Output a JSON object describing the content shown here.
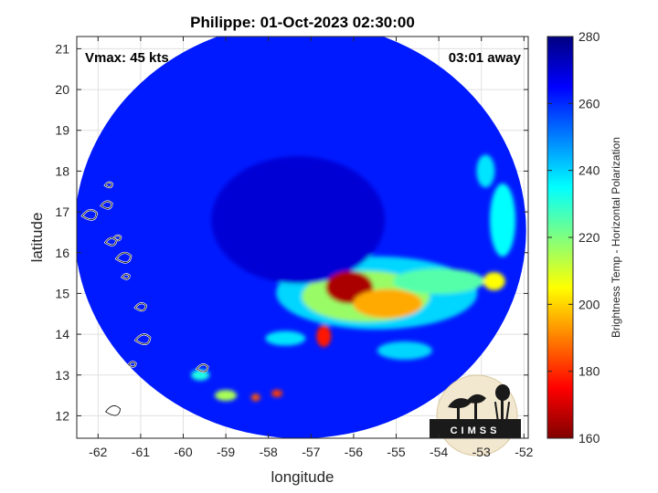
{
  "chart_data": {
    "type": "heatmap",
    "title": "Philippe: 01-Oct-2023 02:30:00",
    "xlabel": "longitude",
    "ylabel": "latitude",
    "xlim": [
      -62.5,
      -51.9
    ],
    "ylim": [
      11.45,
      21.3
    ],
    "xticks": [
      -62,
      -61,
      -60,
      -59,
      -58,
      -57,
      -56,
      -55,
      -54,
      -53,
      -52
    ],
    "yticks": [
      12,
      13,
      14,
      15,
      16,
      17,
      18,
      19,
      20,
      21
    ],
    "grid": true,
    "annotations": {
      "left": "Vmax: 45 kts",
      "right": "03:01 away"
    },
    "colorbar": {
      "label": "Brightness Temp - Horizontal Polarization",
      "range": [
        160,
        280
      ],
      "ticks": [
        160,
        180,
        200,
        220,
        240,
        260,
        280
      ],
      "colormap": "jet"
    },
    "scan_center": {
      "lon": -57.25,
      "lat": 16.55
    },
    "background_tb": 262,
    "features": [
      {
        "name": "storm-eye-region",
        "lon": -57.3,
        "lat": 16.8,
        "tb": 270
      },
      {
        "name": "deep-convection-core",
        "lon": -56.1,
        "lat": 15.15,
        "tb": 165
      },
      {
        "name": "convection-east",
        "lon": -55.2,
        "lat": 14.75,
        "tb": 195
      },
      {
        "name": "convection-spot-south",
        "lon": -56.7,
        "lat": 13.95,
        "tb": 178
      },
      {
        "name": "rainband-east-1",
        "lon": -54.0,
        "lat": 15.3,
        "tb": 225
      },
      {
        "name": "rainband-east-2",
        "lon": -52.7,
        "lat": 15.3,
        "tb": 205
      },
      {
        "name": "rainband-northeast",
        "lon": -52.5,
        "lat": 16.8,
        "tb": 235
      },
      {
        "name": "rainband-north-edge",
        "lon": -52.9,
        "lat": 18.0,
        "tb": 238
      },
      {
        "name": "cell-south-1",
        "lon": -58.3,
        "lat": 12.45,
        "tb": 185
      },
      {
        "name": "cell-south-2",
        "lon": -57.8,
        "lat": 12.55,
        "tb": 182
      },
      {
        "name": "cell-south-3",
        "lon": -59.0,
        "lat": 12.5,
        "tb": 215
      },
      {
        "name": "cell-south-4",
        "lon": -59.6,
        "lat": 13.0,
        "tb": 232
      },
      {
        "name": "band-southwest",
        "lon": -57.6,
        "lat": 13.9,
        "tb": 238
      },
      {
        "name": "band-southeast",
        "lon": -54.8,
        "lat": 13.6,
        "tb": 240
      }
    ],
    "islands": [
      {
        "name": "island-1",
        "lon": -61.75,
        "lat": 17.65
      },
      {
        "name": "island-2",
        "lon": -61.8,
        "lat": 17.15
      },
      {
        "name": "island-3",
        "lon": -62.2,
        "lat": 16.9
      },
      {
        "name": "island-4",
        "lon": -61.55,
        "lat": 16.35
      },
      {
        "name": "island-5",
        "lon": -61.7,
        "lat": 16.25
      },
      {
        "name": "island-6",
        "lon": -61.4,
        "lat": 15.85
      },
      {
        "name": "island-7",
        "lon": -61.35,
        "lat": 15.4
      },
      {
        "name": "island-8",
        "lon": -61.0,
        "lat": 14.65
      },
      {
        "name": "island-9",
        "lon": -60.95,
        "lat": 13.85
      },
      {
        "name": "island-10",
        "lon": -61.2,
        "lat": 13.25
      },
      {
        "name": "island-11",
        "lon": -59.55,
        "lat": 13.15
      },
      {
        "name": "island-12",
        "lon": -61.65,
        "lat": 12.1
      }
    ]
  },
  "logo": {
    "text": "CIMSS"
  }
}
